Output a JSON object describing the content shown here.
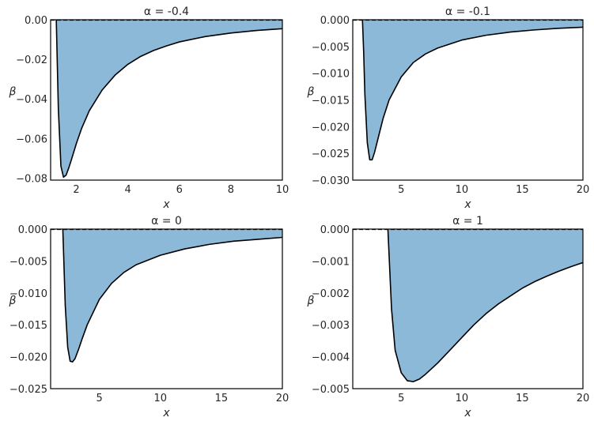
{
  "chart_data": [
    {
      "type": "area",
      "title": "α = -0.4",
      "xlabel": "x",
      "ylabel": "β",
      "xlim": [
        1.0,
        10.0
      ],
      "ylim": [
        -0.081,
        0.0
      ],
      "xticks": [
        2,
        4,
        6,
        8,
        10
      ],
      "xtick_labels": [
        "2",
        "4",
        "6",
        "8",
        "10"
      ],
      "yticks": [
        0.0,
        -0.02,
        -0.04,
        -0.06,
        -0.08
      ],
      "ytick_labels": [
        "0.00",
        "−0.02",
        "−0.04",
        "−0.06",
        "−0.08"
      ],
      "grid": false,
      "series": [
        {
          "x": [
            1.22,
            1.3,
            1.4,
            1.5,
            1.6,
            1.7,
            1.8,
            2.0,
            2.2,
            2.5,
            3.0,
            3.5,
            4.0,
            4.5,
            5.0,
            5.5,
            6.0,
            7.0,
            8.0,
            9.0,
            10.0
          ],
          "values": [
            0.0,
            -0.045,
            -0.074,
            -0.0795,
            -0.0785,
            -0.075,
            -0.071,
            -0.0625,
            -0.055,
            -0.046,
            -0.0355,
            -0.028,
            -0.0225,
            -0.0185,
            -0.0155,
            -0.0132,
            -0.0112,
            -0.0085,
            -0.0067,
            -0.0054,
            -0.0045
          ]
        }
      ],
      "reference_line": 0.0,
      "fill_color": "#8db9d9",
      "line_color": "#000000"
    },
    {
      "type": "area",
      "title": "α = -0.1",
      "xlabel": "x",
      "ylabel": "β",
      "xlim": [
        1.0,
        20.0
      ],
      "ylim": [
        -0.03,
        0.0
      ],
      "xticks": [
        5,
        10,
        15,
        20
      ],
      "xtick_labels": [
        "5",
        "10",
        "15",
        "20"
      ],
      "yticks": [
        0.0,
        -0.005,
        -0.01,
        -0.015,
        -0.02,
        -0.025,
        -0.03
      ],
      "ytick_labels": [
        "0.000",
        "−0.005",
        "−0.010",
        "−0.015",
        "−0.020",
        "−0.025",
        "−0.030"
      ],
      "grid": false,
      "series": [
        {
          "x": [
            1.8,
            1.9,
            2.0,
            2.2,
            2.4,
            2.6,
            2.8,
            3.0,
            3.5,
            4.0,
            5.0,
            6.0,
            7.0,
            8.0,
            10.0,
            12.0,
            14.0,
            16.0,
            18.0,
            20.0
          ],
          "values": [
            0.0,
            -0.006,
            -0.014,
            -0.023,
            -0.0262,
            -0.0262,
            -0.0248,
            -0.023,
            -0.0185,
            -0.015,
            -0.0107,
            -0.008,
            -0.0064,
            -0.0053,
            -0.0038,
            -0.0029,
            -0.0023,
            -0.0019,
            -0.0016,
            -0.0014
          ]
        }
      ],
      "reference_line": 0.0,
      "fill_color": "#8db9d9",
      "line_color": "#000000"
    },
    {
      "type": "area",
      "title": "α = 0",
      "xlabel": "x",
      "ylabel": "β",
      "xlim": [
        1.0,
        20.0
      ],
      "ylim": [
        -0.025,
        0.0
      ],
      "xticks": [
        5,
        10,
        15,
        20
      ],
      "xtick_labels": [
        "5",
        "10",
        "15",
        "20"
      ],
      "yticks": [
        0.0,
        -0.005,
        -0.01,
        -0.015,
        -0.02,
        -0.025
      ],
      "ytick_labels": [
        "0.000",
        "−0.005",
        "−0.010",
        "−0.015",
        "−0.020",
        "−0.025"
      ],
      "grid": false,
      "series": [
        {
          "x": [
            2.0,
            2.2,
            2.4,
            2.6,
            2.8,
            3.0,
            3.3,
            3.6,
            4.0,
            5.0,
            6.0,
            7.0,
            8.0,
            10.0,
            12.0,
            14.0,
            16.0,
            18.0,
            20.0
          ],
          "values": [
            0.0,
            -0.012,
            -0.0185,
            -0.0207,
            -0.0208,
            -0.0203,
            -0.0188,
            -0.0171,
            -0.015,
            -0.011,
            -0.0085,
            -0.0068,
            -0.0056,
            -0.0041,
            -0.0031,
            -0.0024,
            -0.0019,
            -0.0016,
            -0.0013
          ]
        }
      ],
      "reference_line": 0.0,
      "fill_color": "#8db9d9",
      "line_color": "#000000"
    },
    {
      "type": "area",
      "title": "α = 1",
      "xlabel": "x",
      "ylabel": "β",
      "xlim": [
        1.0,
        20.0
      ],
      "ylim": [
        -0.005,
        0.0
      ],
      "xticks": [
        5,
        10,
        15,
        20
      ],
      "xtick_labels": [
        "5",
        "10",
        "15",
        "20"
      ],
      "yticks": [
        0.0,
        -0.001,
        -0.002,
        -0.003,
        -0.004,
        -0.005
      ],
      "ytick_labels": [
        "0.000",
        "−0.001",
        "−0.002",
        "−0.003",
        "−0.004",
        "−0.005"
      ],
      "grid": false,
      "series": [
        {
          "x": [
            3.9,
            4.2,
            4.5,
            5.0,
            5.5,
            6.0,
            6.5,
            7.0,
            8.0,
            9.0,
            10.0,
            11.0,
            12.0,
            13.0,
            14.0,
            15.0,
            16.0,
            17.0,
            18.0,
            19.0,
            20.0
          ],
          "values": [
            0.0,
            -0.0025,
            -0.0038,
            -0.0045,
            -0.00475,
            -0.00478,
            -0.0047,
            -0.00455,
            -0.0042,
            -0.0038,
            -0.0034,
            -0.003,
            -0.00265,
            -0.00235,
            -0.0021,
            -0.00185,
            -0.00165,
            -0.00148,
            -0.00132,
            -0.00118,
            -0.00105
          ]
        }
      ],
      "reference_line": 0.0,
      "fill_color": "#8db9d9",
      "line_color": "#000000"
    }
  ]
}
